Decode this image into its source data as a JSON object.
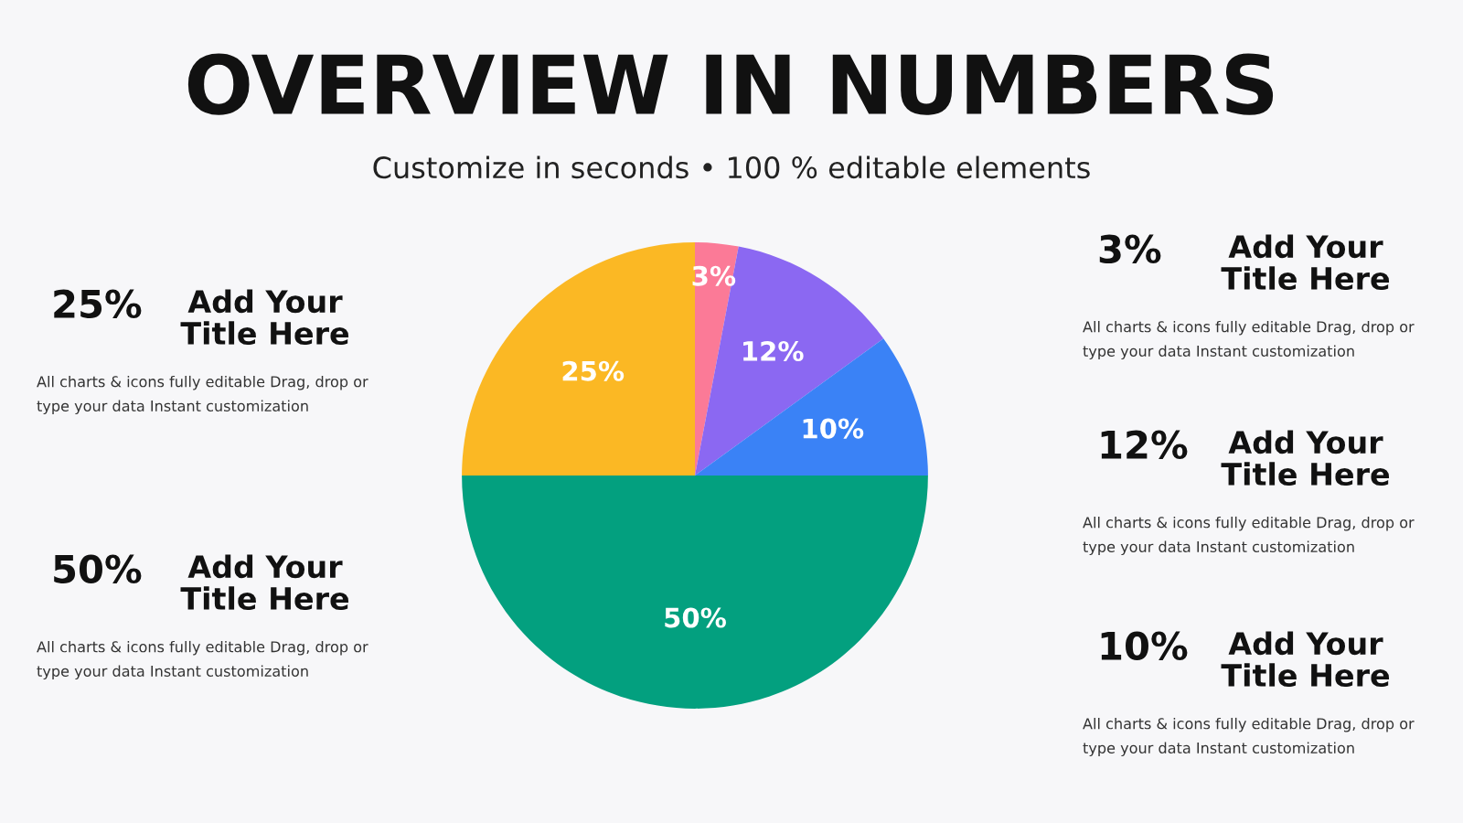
{
  "chart_data": {
    "type": "pie",
    "title": "OVERVIEW IN NUMBERS",
    "subtitle": "Customize in seconds • 100 % editable elements",
    "categories": [
      null,
      null,
      null,
      null,
      null
    ],
    "values": [
      3,
      12,
      10,
      50,
      25
    ],
    "colors": [
      "#fb7a97",
      "#8b68f2",
      "#3a82f6",
      "#03a07f",
      "#fbb824"
    ],
    "value_labels": [
      "3%",
      "12%",
      "10%",
      "50%",
      "25%"
    ],
    "annotations": [
      "25%",
      "Add Your\nTitle Here",
      "All charts & icons fully editable Drag, drop or\ntype your data Instant customization",
      "50%",
      "Add Your\nTitle Here",
      "All charts & icons fully editable Drag, drop or\ntype your data Instant customization",
      "3%",
      "Add Your\nTitle Here",
      "All charts & icons fully editable Drag, drop or\ntype your data Instant customization",
      "12%",
      "Add Your\nTitle Here",
      "All charts & icons fully editable Drag, drop or\ntype your data Instant customization",
      "10%",
      "Add Your\nTitle Here",
      "All charts & icons fully editable Drag, drop or\ntype your data Instant customization"
    ]
  }
}
